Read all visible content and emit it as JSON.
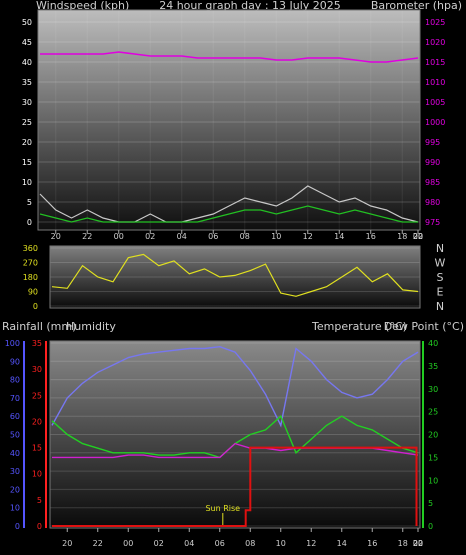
{
  "header": {
    "left": "Windspeed (kph)",
    "center": "24 hour graph day : 13 July 2025",
    "right": "Barometer (hpa)"
  },
  "bottom_header": {
    "left1": "Rainfall (mm)",
    "left2": "Humidity",
    "right1": "Temperature (°C)",
    "right2": "Dew Point (°C)"
  },
  "x_ticks": [
    "20",
    "22",
    "00",
    "02",
    "04",
    "06",
    "08",
    "10",
    "12",
    "14",
    "16",
    "18",
    "20",
    "22",
    "00"
  ],
  "annotation": "Sun Rise",
  "colors": {
    "wind_avg": "#22c022",
    "wind_gust": "#c8c8c8",
    "barometer": "#e000e0",
    "direction": "#e0e020",
    "humidity": "#7777f0",
    "rainfall": "#e01010",
    "temperature": "#22d022",
    "dewpoint": "#d020d0",
    "axis_wind": "#ffffff",
    "axis_humidity": "#5555ff",
    "axis_rain": "#ff2020",
    "axis_temp": "#22cc22"
  },
  "chart_data": [
    {
      "type": "line",
      "title": "24 hour graph day : 13 July 2025",
      "ylabel": "Windspeed (kph)",
      "ylabel_right": "Barometer (hpa)",
      "ylim": [
        0,
        50
      ],
      "yticks": [
        0,
        5,
        10,
        15,
        20,
        25,
        30,
        35,
        40,
        45,
        50
      ],
      "ylim_right": [
        975,
        1025
      ],
      "yticks_right": [
        975,
        980,
        985,
        990,
        995,
        1000,
        1005,
        1010,
        1015,
        1020,
        1025
      ],
      "x": [
        19,
        20,
        21,
        22,
        23,
        24,
        25,
        26,
        27,
        28,
        29,
        30,
        31,
        32,
        33,
        34,
        35,
        36,
        37,
        38,
        39,
        40,
        41,
        42,
        43
      ],
      "series": [
        {
          "key": "barometer",
          "axis": "right",
          "values": [
            1017,
            1017,
            1017,
            1017,
            1017,
            1017.5,
            1017,
            1016.5,
            1016.5,
            1016.5,
            1016,
            1016,
            1016,
            1016,
            1016,
            1015.5,
            1015.5,
            1016,
            1016,
            1016,
            1015.5,
            1015,
            1015,
            1015.5,
            1016
          ]
        },
        {
          "key": "wind_gust",
          "axis": "left",
          "values": [
            7,
            3,
            1,
            3,
            1,
            0,
            0,
            2,
            0,
            0,
            1,
            2,
            4,
            6,
            5,
            4,
            6,
            9,
            7,
            5,
            6,
            4,
            3,
            1,
            0
          ]
        },
        {
          "key": "wind_avg",
          "axis": "left",
          "values": [
            2,
            1,
            0,
            1,
            0,
            0,
            0,
            0,
            0,
            0,
            0,
            1,
            2,
            3,
            3,
            2,
            3,
            4,
            3,
            2,
            3,
            2,
            1,
            0,
            0
          ]
        }
      ]
    },
    {
      "type": "line",
      "ylabel_right": [
        "N",
        "W",
        "S",
        "E",
        "N"
      ],
      "ylim": [
        0,
        360
      ],
      "yticks": [
        0,
        90,
        180,
        270,
        360
      ],
      "x": [
        19,
        20,
        21,
        22,
        23,
        24,
        25,
        26,
        27,
        28,
        29,
        30,
        31,
        32,
        33,
        34,
        35,
        36,
        37,
        38,
        39,
        40,
        41,
        42,
        43
      ],
      "series": [
        {
          "key": "direction",
          "values": [
            120,
            110,
            250,
            180,
            150,
            300,
            320,
            250,
            280,
            200,
            230,
            180,
            190,
            220,
            260,
            80,
            60,
            90,
            120,
            180,
            240,
            150,
            200,
            100,
            90
          ]
        }
      ]
    },
    {
      "type": "line",
      "ylabel": "Humidity",
      "ylabel_rain": "Rainfall (mm)",
      "ylabel_right": "Temperature (°C)",
      "ylim": [
        0,
        100
      ],
      "yticks": [
        0,
        10,
        20,
        30,
        40,
        50,
        60,
        70,
        80,
        90,
        100
      ],
      "ylim_rain": [
        0,
        35
      ],
      "yticks_rain": [
        0,
        5,
        10,
        15,
        20,
        25,
        30,
        35
      ],
      "ylim_right": [
        0,
        40
      ],
      "yticks_right": [
        0,
        5,
        10,
        15,
        20,
        25,
        30,
        35,
        40
      ],
      "annotations": [
        {
          "text": "Sun Rise",
          "x": 30.2
        }
      ],
      "x": [
        19,
        20,
        21,
        22,
        23,
        24,
        25,
        26,
        27,
        28,
        29,
        30,
        31,
        32,
        33,
        34,
        35,
        36,
        37,
        38,
        39,
        40,
        41,
        42,
        43
      ],
      "series": [
        {
          "key": "humidity",
          "axis": "left",
          "values": [
            55,
            70,
            78,
            84,
            88,
            92,
            94,
            95,
            96,
            97,
            97,
            98,
            95,
            85,
            72,
            55,
            97,
            90,
            80,
            73,
            70,
            72,
            80,
            90,
            95
          ]
        },
        {
          "key": "temperature",
          "axis": "right",
          "values": [
            23,
            20,
            18,
            17,
            16,
            16,
            16,
            15.5,
            15.5,
            16,
            16,
            15,
            18,
            20,
            21,
            24,
            16,
            19,
            22,
            24,
            22,
            21,
            19,
            17,
            16
          ]
        },
        {
          "key": "dewpoint",
          "axis": "right",
          "values": [
            15,
            15,
            15,
            15,
            15,
            15.5,
            15.5,
            15,
            15,
            15,
            15,
            15,
            18,
            17,
            17,
            16.5,
            17,
            17,
            17,
            17,
            17,
            17,
            16.5,
            16,
            15.5
          ]
        },
        {
          "key": "rainfall",
          "axis": "rain",
          "x": [
            19,
            31.7,
            31.7,
            32,
            32,
            42.9,
            42.9
          ],
          "values": [
            0,
            0,
            3,
            3,
            15,
            15,
            0
          ]
        }
      ]
    }
  ]
}
